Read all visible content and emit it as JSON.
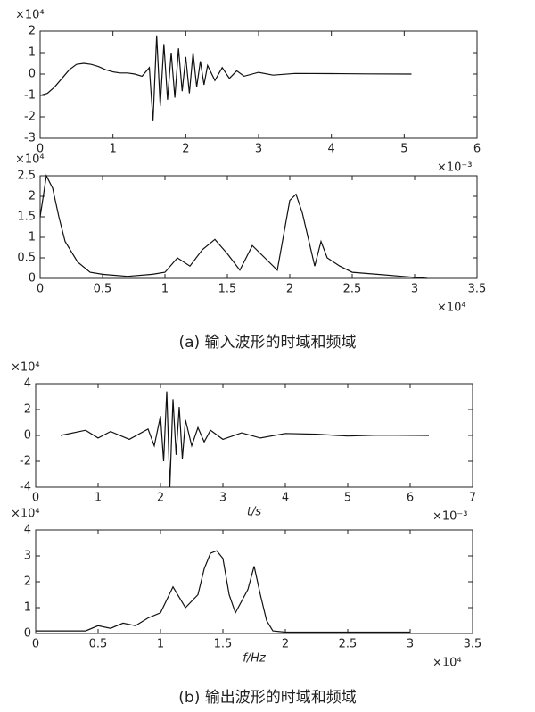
{
  "chart_data": [
    {
      "type": "line",
      "y_exponent": "×10⁴",
      "x_exponent": "×10⁻³",
      "xlim": [
        0,
        6
      ],
      "xticks": [
        0,
        1,
        2,
        3,
        4,
        5,
        6
      ],
      "ylim": [
        -3,
        2
      ],
      "yticks": [
        -3,
        -2,
        -1,
        0,
        1,
        2
      ],
      "series": [
        {
          "color": "#111111",
          "x": [
            0,
            0.1,
            0.2,
            0.3,
            0.4,
            0.5,
            0.6,
            0.7,
            0.8,
            0.9,
            1.0,
            1.1,
            1.2,
            1.3,
            1.4,
            1.5,
            1.55,
            1.6,
            1.65,
            1.7,
            1.75,
            1.8,
            1.85,
            1.9,
            1.95,
            2.0,
            2.05,
            2.1,
            2.15,
            2.2,
            2.25,
            2.3,
            2.4,
            2.5,
            2.6,
            2.7,
            2.8,
            3.0,
            3.2,
            3.5,
            4.0,
            4.5,
            5.1
          ],
          "values": [
            -1,
            -0.9,
            -0.6,
            -0.2,
            0.2,
            0.45,
            0.5,
            0.45,
            0.35,
            0.2,
            0.1,
            0.05,
            0.05,
            0,
            -0.1,
            0.3,
            -2.2,
            1.8,
            -1.5,
            1.4,
            -1.2,
            1.0,
            -1.1,
            1.2,
            -0.8,
            0.8,
            -0.9,
            1.0,
            -0.6,
            0.6,
            -0.5,
            0.4,
            -0.3,
            0.3,
            -0.2,
            0.15,
            -0.1,
            0.08,
            -0.05,
            0.03,
            0.02,
            0.01,
            0
          ]
        }
      ]
    },
    {
      "type": "line",
      "y_exponent": "×10⁴",
      "x_exponent": "×10⁴",
      "xlim": [
        0,
        3.5
      ],
      "xticks": [
        0,
        0.5,
        1,
        1.5,
        2,
        2.5,
        3,
        3.5
      ],
      "ylim": [
        0,
        2.5
      ],
      "yticks": [
        0,
        0.5,
        1,
        1.5,
        2,
        2.5
      ],
      "series": [
        {
          "color": "#111111",
          "x": [
            0,
            0.05,
            0.1,
            0.15,
            0.2,
            0.3,
            0.4,
            0.5,
            0.7,
            0.9,
            1.0,
            1.1,
            1.2,
            1.3,
            1.4,
            1.5,
            1.6,
            1.7,
            1.8,
            1.9,
            2.0,
            2.05,
            2.1,
            2.2,
            2.25,
            2.3,
            2.4,
            2.5,
            2.7,
            2.9,
            3.1
          ],
          "values": [
            1.5,
            2.5,
            2.2,
            1.5,
            0.9,
            0.4,
            0.15,
            0.1,
            0.05,
            0.1,
            0.15,
            0.5,
            0.3,
            0.7,
            0.95,
            0.6,
            0.2,
            0.8,
            0.5,
            0.2,
            1.9,
            2.05,
            1.6,
            0.3,
            0.9,
            0.5,
            0.3,
            0.15,
            0.1,
            0.05,
            0
          ]
        }
      ],
      "caption": "(a)  输入波形的时域和频域"
    },
    {
      "type": "line",
      "y_exponent": "×10⁴",
      "x_exponent": "×10⁻³",
      "x_label": "t/s",
      "xlim": [
        0,
        7
      ],
      "xticks": [
        0,
        1,
        2,
        3,
        4,
        5,
        6,
        7
      ],
      "ylim": [
        -4,
        4
      ],
      "yticks": [
        -4,
        -2,
        0,
        2,
        4
      ],
      "series": [
        {
          "color": "#111111",
          "x": [
            0.4,
            0.8,
            1.0,
            1.2,
            1.5,
            1.8,
            1.9,
            2.0,
            2.05,
            2.1,
            2.15,
            2.2,
            2.25,
            2.3,
            2.35,
            2.4,
            2.5,
            2.6,
            2.7,
            2.8,
            3.0,
            3.3,
            3.6,
            4.0,
            4.5,
            5.0,
            5.5,
            6.3
          ],
          "values": [
            0,
            0.4,
            -0.2,
            0.3,
            -0.3,
            0.5,
            -0.8,
            1.5,
            -2.0,
            3.4,
            -4.0,
            2.8,
            -1.5,
            2.2,
            -1.8,
            1.2,
            -0.8,
            0.6,
            -0.5,
            0.4,
            -0.3,
            0.2,
            -0.2,
            0.15,
            0.1,
            -0.05,
            0.02,
            0
          ]
        }
      ]
    },
    {
      "type": "line",
      "y_exponent": "×10⁴",
      "x_exponent": "×10⁴",
      "x_label": "f/Hz",
      "xlim": [
        0,
        3.5
      ],
      "xticks": [
        0,
        0.5,
        1,
        1.5,
        2,
        2.5,
        3,
        3.5
      ],
      "ylim": [
        0,
        4
      ],
      "yticks": [
        0,
        1,
        2,
        3,
        4
      ],
      "series": [
        {
          "color": "#111111",
          "x": [
            0,
            0.4,
            0.5,
            0.6,
            0.7,
            0.8,
            0.9,
            1.0,
            1.1,
            1.2,
            1.3,
            1.35,
            1.4,
            1.45,
            1.5,
            1.55,
            1.6,
            1.7,
            1.75,
            1.8,
            1.85,
            1.9,
            2.0,
            2.5,
            3.0
          ],
          "values": [
            0.1,
            0.1,
            0.3,
            0.2,
            0.4,
            0.3,
            0.6,
            0.8,
            1.8,
            1.0,
            1.5,
            2.5,
            3.1,
            3.2,
            2.9,
            1.5,
            0.8,
            1.7,
            2.6,
            1.5,
            0.5,
            0.1,
            0.05,
            0.05,
            0.05
          ]
        }
      ],
      "caption": "(b)  输出波形的时域和频域"
    }
  ]
}
